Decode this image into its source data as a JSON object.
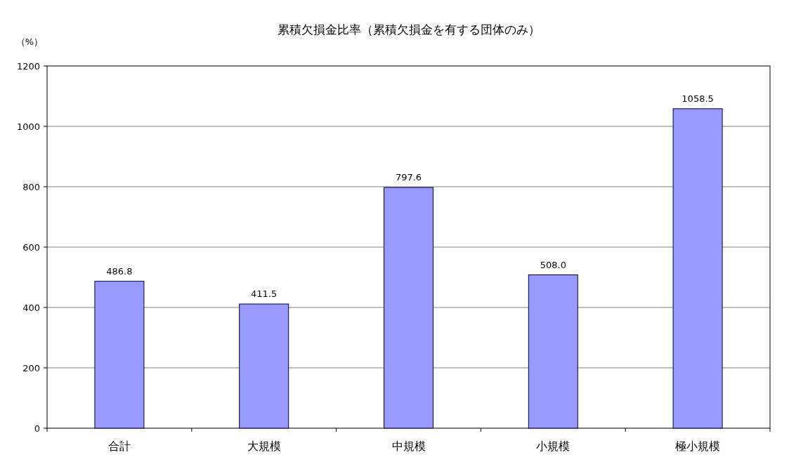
{
  "chart_data": {
    "type": "bar",
    "title": "累積欠損金比率（累積欠損金を有する団体のみ）",
    "ylabel": "（%）",
    "categories": [
      "合計",
      "大規模",
      "中規模",
      "小規模",
      "極小規模"
    ],
    "values": [
      486.8,
      411.5,
      797.6,
      508.0,
      1058.5
    ],
    "value_labels": [
      "486.8",
      "411.5",
      "797.6",
      "508.0",
      "1058.5"
    ],
    "color": "#9999ff",
    "ylim": [
      0,
      1200
    ],
    "yticks": [
      0,
      200,
      400,
      600,
      800,
      1000,
      1200
    ],
    "grid": "y"
  }
}
